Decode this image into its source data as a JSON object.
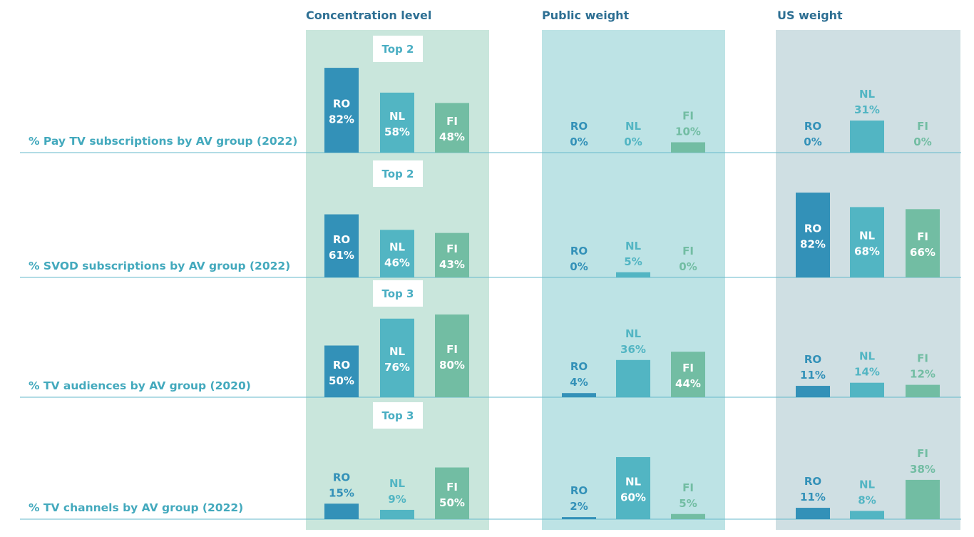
{
  "colors": {
    "RO": "#3391b8",
    "NL": "#52b5c3",
    "FI": "#72bda3",
    "panel_concentration": "#c9e6dc",
    "panel_public": "#bde3e5",
    "panel_us": "#cfdfe3",
    "rule": "#66b9cb",
    "title": "#2d6f93",
    "row_label": "#43a9bd"
  },
  "chart_data": {
    "type": "bar",
    "title": "",
    "categories": [
      "RO",
      "NL",
      "FI"
    ],
    "unit": "%",
    "panels": [
      {
        "key": "concentration",
        "title": "Concentration level"
      },
      {
        "key": "public",
        "title": "Public weight"
      },
      {
        "key": "us",
        "title": "US weight"
      }
    ],
    "rows": [
      {
        "label": "% Pay TV subscriptions by AV group (2022)",
        "badge": "Top 2",
        "values": {
          "concentration": [
            82,
            58,
            48
          ],
          "public": [
            0,
            0,
            10
          ],
          "us": [
            0,
            31,
            0
          ]
        }
      },
      {
        "label": "% SVOD subscriptions by AV group (2022)",
        "badge": "Top 2",
        "values": {
          "concentration": [
            61,
            46,
            43
          ],
          "public": [
            0,
            5,
            0
          ],
          "us": [
            82,
            68,
            66
          ]
        }
      },
      {
        "label": "% TV audiences by AV group (2020)",
        "badge": "Top 3",
        "values": {
          "concentration": [
            50,
            76,
            80
          ],
          "public": [
            4,
            36,
            44
          ],
          "us": [
            11,
            14,
            12
          ]
        }
      },
      {
        "label": "% TV channels by AV group (2022)",
        "badge": "Top 3",
        "values": {
          "concentration": [
            15,
            9,
            50
          ],
          "public": [
            2,
            60,
            5
          ],
          "us": [
            11,
            8,
            38
          ]
        }
      }
    ]
  }
}
